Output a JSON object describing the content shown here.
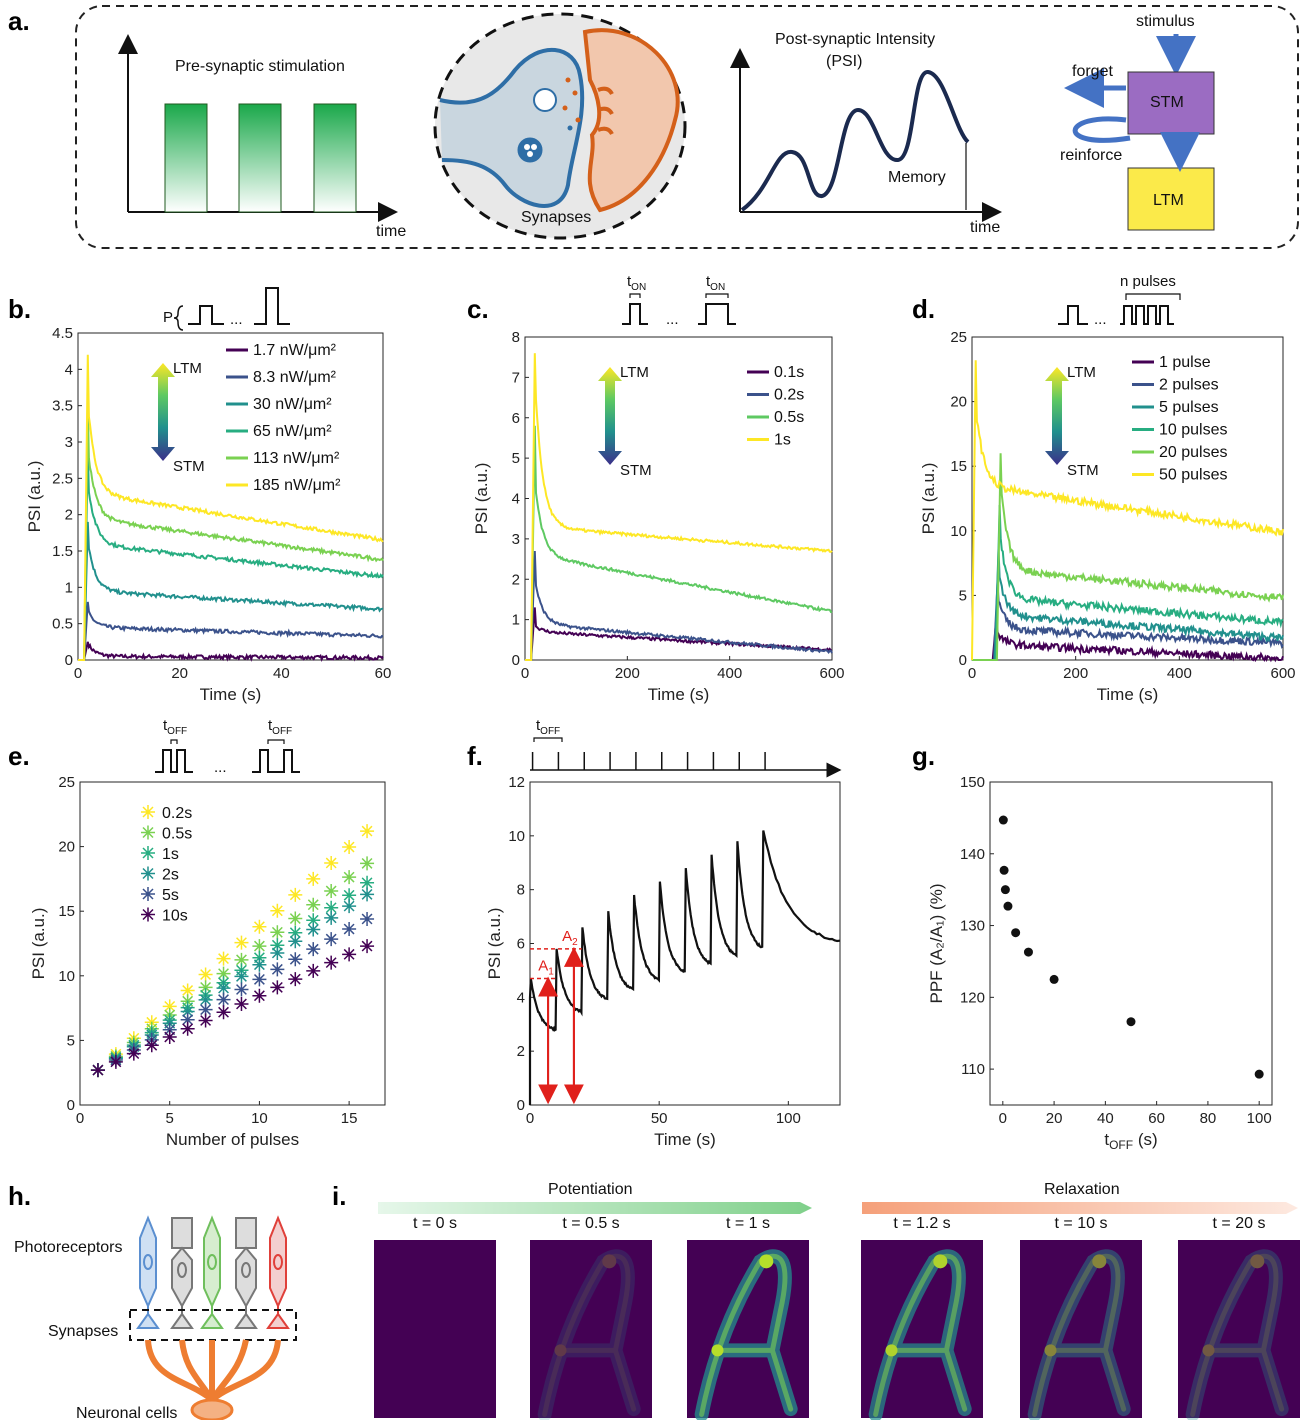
{
  "figure": {
    "panel_labels": [
      "a.",
      "b.",
      "c.",
      "d.",
      "e.",
      "f.",
      "g.",
      "h.",
      "i."
    ],
    "a": {
      "presyn_title": "Pre-synaptic stimulation",
      "presyn_xlabel": "time",
      "synapse_label": "Synapses",
      "postsyn_title_1": "Post-synaptic Intensity",
      "postsyn_title_2": "(PSI)",
      "memory_label": "Memory",
      "postsyn_xlabel": "time",
      "flow": {
        "stimulus": "stimulus",
        "stm": "STM",
        "ltm": "LTM",
        "forget": "forget",
        "reinforce": "reinforce"
      }
    },
    "b_header": {
      "p_label": "P",
      "ellipsis": "..."
    },
    "c_header": {
      "ton_base": "t",
      "ton_sub": "ON",
      "ellipsis": "..."
    },
    "d_header": {
      "n_label": "n pulses",
      "ellipsis": "..."
    },
    "e_header": {
      "toff_base": "t",
      "toff_sub": "OFF",
      "ellipsis": "..."
    },
    "f_header": {
      "toff_base": "t",
      "toff_sub": "OFF"
    },
    "ltm_label": "LTM",
    "stm_label": "STM",
    "h": {
      "photoreceptors": "Photoreceptors",
      "synapses": "Synapses",
      "neuronal": "Neuronal cells"
    },
    "i": {
      "potentiation": "Potentiation",
      "relaxation": "Relaxation",
      "frames": [
        "t = 0 s",
        "t = 0.5 s",
        "t = 1 s",
        "t = 1.2 s",
        "t = 10 s",
        "t = 20 s"
      ],
      "frame_intensity": [
        0,
        0.25,
        1,
        0.95,
        0.6,
        0.4
      ]
    }
  },
  "chart_data": [
    {
      "panel": "b",
      "type": "line",
      "xlabel": "Time (s)",
      "ylabel": "PSI (a.u.)",
      "xlim": [
        0,
        60
      ],
      "ylim": [
        0,
        4.5
      ],
      "xticks": [
        0,
        20,
        40,
        60
      ],
      "yticks": [
        0,
        0.5,
        1,
        1.5,
        2,
        2.5,
        3,
        3.5,
        4,
        4.5
      ],
      "series": [
        {
          "name": "1.7 nW/μm²",
          "color": "#440154",
          "peak": 0.25,
          "plateau": 0.05,
          "end": 0.03
        },
        {
          "name": "8.3 nW/μm²",
          "color": "#3b528b",
          "peak": 0.8,
          "plateau": 0.45,
          "end": 0.33
        },
        {
          "name": "30 nW/μm²",
          "color": "#21908d",
          "peak": 1.9,
          "plateau": 0.95,
          "end": 0.7
        },
        {
          "name": "65 nW/μm²",
          "color": "#27ad81",
          "peak": 2.9,
          "plateau": 1.6,
          "end": 1.15
        },
        {
          "name": "113 nW/μm²",
          "color": "#7ad151",
          "peak": 3.5,
          "plateau": 1.95,
          "end": 1.38
        },
        {
          "name": "185 nW/μm²",
          "color": "#fde725",
          "peak": 4.2,
          "plateau": 2.3,
          "end": 1.65
        }
      ]
    },
    {
      "panel": "c",
      "type": "line",
      "xlabel": "Time (s)",
      "ylabel": "PSI (a.u.)",
      "xlim": [
        0,
        600
      ],
      "ylim": [
        0,
        8
      ],
      "xticks": [
        0,
        200,
        400,
        600
      ],
      "yticks": [
        0,
        1,
        2,
        3,
        4,
        5,
        6,
        7,
        8
      ],
      "series": [
        {
          "name": "0.1s",
          "color": "#440154",
          "peak": 1.3,
          "plateau": 0.7,
          "end": 0.25
        },
        {
          "name": "0.2s",
          "color": "#3b528b",
          "peak": 2.7,
          "plateau": 0.9,
          "end": 0.2
        },
        {
          "name": "0.5s",
          "color": "#5ec962",
          "peak": 5.8,
          "plateau": 2.6,
          "end": 1.2
        },
        {
          "name": "1s",
          "color": "#fde725",
          "peak": 7.6,
          "plateau": 3.3,
          "end": 2.7
        }
      ]
    },
    {
      "panel": "d",
      "type": "line",
      "xlabel": "Time (s)",
      "ylabel": "PSI (a.u.)",
      "xlim": [
        0,
        600
      ],
      "ylim": [
        0,
        25
      ],
      "xticks": [
        0,
        200,
        400,
        600
      ],
      "yticks": [
        0,
        5,
        10,
        15,
        20,
        25
      ],
      "series": [
        {
          "name": "1 pulse",
          "color": "#440154",
          "peak": 3.4,
          "start": 40,
          "plateau": 1.2,
          "end": 0.1
        },
        {
          "name": "2 pulses",
          "color": "#3b528b",
          "peak": 6.0,
          "start": 42,
          "plateau": 2.4,
          "end": 1.3
        },
        {
          "name": "5 pulses",
          "color": "#21908d",
          "peak": 8.6,
          "start": 44,
          "plateau": 3.5,
          "end": 1.7
        },
        {
          "name": "10 pulses",
          "color": "#27ad81",
          "peak": 12.0,
          "start": 46,
          "plateau": 4.8,
          "end": 2.9
        },
        {
          "name": "20 pulses",
          "color": "#7ad151",
          "peak": 16.0,
          "start": 48,
          "plateau": 7.0,
          "end": 4.8
        },
        {
          "name": "50 pulses",
          "color": "#fde725",
          "peak": 23.2,
          "start": 0,
          "plateau": 13.5,
          "end": 9.9
        }
      ]
    },
    {
      "panel": "e",
      "type": "scatter",
      "xlabel": "Number of pulses",
      "ylabel": "PSI (a.u.)",
      "xlim": [
        0,
        17
      ],
      "ylim": [
        0,
        25
      ],
      "xticks": [
        0,
        5,
        10,
        15
      ],
      "yticks": [
        0,
        5,
        10,
        15,
        20,
        25
      ],
      "x": [
        1,
        2,
        3,
        4,
        5,
        6,
        7,
        8,
        9,
        10,
        11,
        12,
        13,
        14,
        15,
        16
      ],
      "series": [
        {
          "name": "0.2s",
          "color": "#fde725",
          "y0": 2.7,
          "y16": 21.2
        },
        {
          "name": "0.5s",
          "color": "#7ad151",
          "y0": 2.7,
          "y16": 18.7
        },
        {
          "name": "1s",
          "color": "#27ad81",
          "y0": 2.7,
          "y16": 17.2
        },
        {
          "name": "2s",
          "color": "#21908d",
          "y0": 2.7,
          "y16": 16.3
        },
        {
          "name": "5s",
          "color": "#3b528b",
          "y0": 2.7,
          "y16": 14.4
        },
        {
          "name": "10s",
          "color": "#440154",
          "y0": 2.7,
          "y16": 12.3
        }
      ]
    },
    {
      "panel": "f",
      "type": "line",
      "xlabel": "Time (s)",
      "ylabel": "PSI (a.u.)",
      "xlim": [
        0,
        120
      ],
      "ylim": [
        0,
        12
      ],
      "xticks": [
        0,
        50,
        100
      ],
      "yticks": [
        0,
        2,
        4,
        6,
        8,
        10,
        12
      ],
      "pulse_times": [
        0,
        10,
        20,
        30,
        40,
        50,
        60,
        70,
        80,
        90
      ],
      "peaks": [
        4.7,
        5.8,
        6.6,
        7.2,
        7.8,
        8.3,
        8.8,
        9.3,
        9.8,
        10.2
      ],
      "A1": 4.7,
      "A2": 5.8,
      "A1_label": "A",
      "A2_label": "A"
    },
    {
      "panel": "g",
      "type": "scatter",
      "xlabel": "t",
      "xlabel_sub": "OFF",
      "xlabel_unit": " (s)",
      "ylabel": "PPF (A₂/A₁) (%)",
      "xlim": [
        -5,
        105
      ],
      "ylim": [
        105,
        150
      ],
      "xticks": [
        0,
        20,
        40,
        60,
        80,
        100
      ],
      "yticks": [
        110,
        120,
        130,
        140,
        150
      ],
      "x": [
        0.2,
        0.5,
        1,
        2,
        5,
        10,
        20,
        50,
        100
      ],
      "y": [
        144.7,
        137.7,
        135.0,
        132.7,
        129.0,
        126.3,
        122.5,
        116.6,
        109.3
      ]
    }
  ]
}
